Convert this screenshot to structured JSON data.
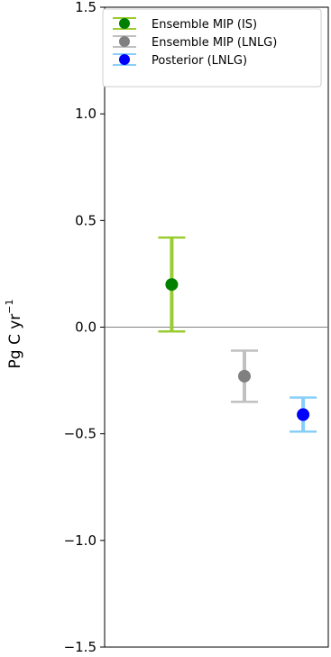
{
  "chart_data": {
    "type": "scatter",
    "title": "",
    "xlabel": "",
    "ylabel": "Pg C yr",
    "ylabel_superscript": "−1",
    "ylim": [
      -1.5,
      1.5
    ],
    "xlim": [
      0,
      4
    ],
    "yticks": [
      -1.5,
      -1.0,
      -0.5,
      0.0,
      0.5,
      1.0,
      1.5
    ],
    "ytick_labels": [
      "−1.5",
      "−1.0",
      "−0.5",
      "0.0",
      "0.5",
      "1.0",
      "1.5"
    ],
    "zero_line": true,
    "grid": false,
    "legend_position": "top-right",
    "series": [
      {
        "name": "Ensemble MIP (IS)",
        "x": 1.2,
        "y": 0.2,
        "err_low": -0.02,
        "err_high": 0.42,
        "marker_color": "#008000",
        "bar_color": "#9acd32"
      },
      {
        "name": "Ensemble MIP (LNLG)",
        "x": 2.5,
        "y": -0.23,
        "err_low": -0.35,
        "err_high": -0.11,
        "marker_color": "#808080",
        "bar_color": "#c0c0c0"
      },
      {
        "name": "Posterior (LNLG)",
        "x": 3.55,
        "y": -0.41,
        "err_low": -0.49,
        "err_high": -0.33,
        "marker_color": "#0000ff",
        "bar_color": "#87cefa"
      }
    ]
  }
}
